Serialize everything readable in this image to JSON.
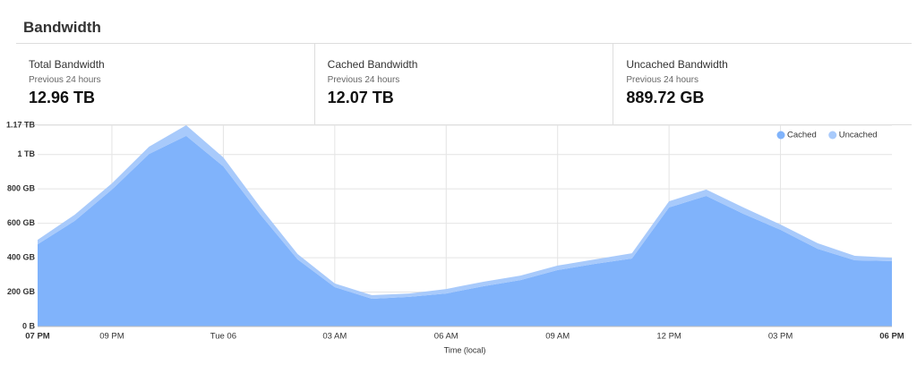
{
  "header": {
    "title": "Bandwidth"
  },
  "stats": [
    {
      "title": "Total Bandwidth",
      "subtitle": "Previous 24 hours",
      "value": "12.96 TB"
    },
    {
      "title": "Cached Bandwidth",
      "subtitle": "Previous 24 hours",
      "value": "12.07 TB"
    },
    {
      "title": "Uncached Bandwidth",
      "subtitle": "Previous 24 hours",
      "value": "889.72 GB"
    }
  ],
  "chart_data": {
    "type": "stacked-area",
    "x_label": "Time (local)",
    "categories": [
      "07 PM",
      null,
      "09 PM",
      null,
      null,
      "Tue 06",
      null,
      null,
      "03 AM",
      null,
      null,
      "06 AM",
      null,
      null,
      "09 AM",
      null,
      null,
      "12 PM",
      null,
      null,
      "03 PM",
      null,
      null,
      "06 PM"
    ],
    "series": [
      {
        "name": "Cached",
        "color": "#80b3fb",
        "values": [
          478,
          614,
          796,
          1003,
          1108,
          931,
          650,
          390,
          229,
          161,
          172,
          192,
          234,
          270,
          328,
          364,
          395,
          692,
          759,
          655,
          562,
          452,
          385,
          380
        ]
      },
      {
        "name": "Uncached",
        "color": "#a8cafb",
        "values": [
          26,
          36,
          36,
          42,
          62,
          52,
          42,
          31,
          21,
          21,
          20,
          26,
          26,
          26,
          26,
          26,
          31,
          36,
          37,
          37,
          31,
          32,
          26,
          20
        ]
      }
    ],
    "ylim": [
      0,
      1170
    ],
    "yticks": [
      {
        "value": 0,
        "label": "0 B"
      },
      {
        "value": 200,
        "label": "200 GB"
      },
      {
        "value": 400,
        "label": "400 GB"
      },
      {
        "value": 600,
        "label": "600 GB"
      },
      {
        "value": 800,
        "label": "800 GB"
      },
      {
        "value": 1000,
        "label": "1 TB"
      },
      {
        "value": 1170,
        "label": "1.17 TB"
      }
    ],
    "grid": true,
    "legend": "top-right"
  }
}
